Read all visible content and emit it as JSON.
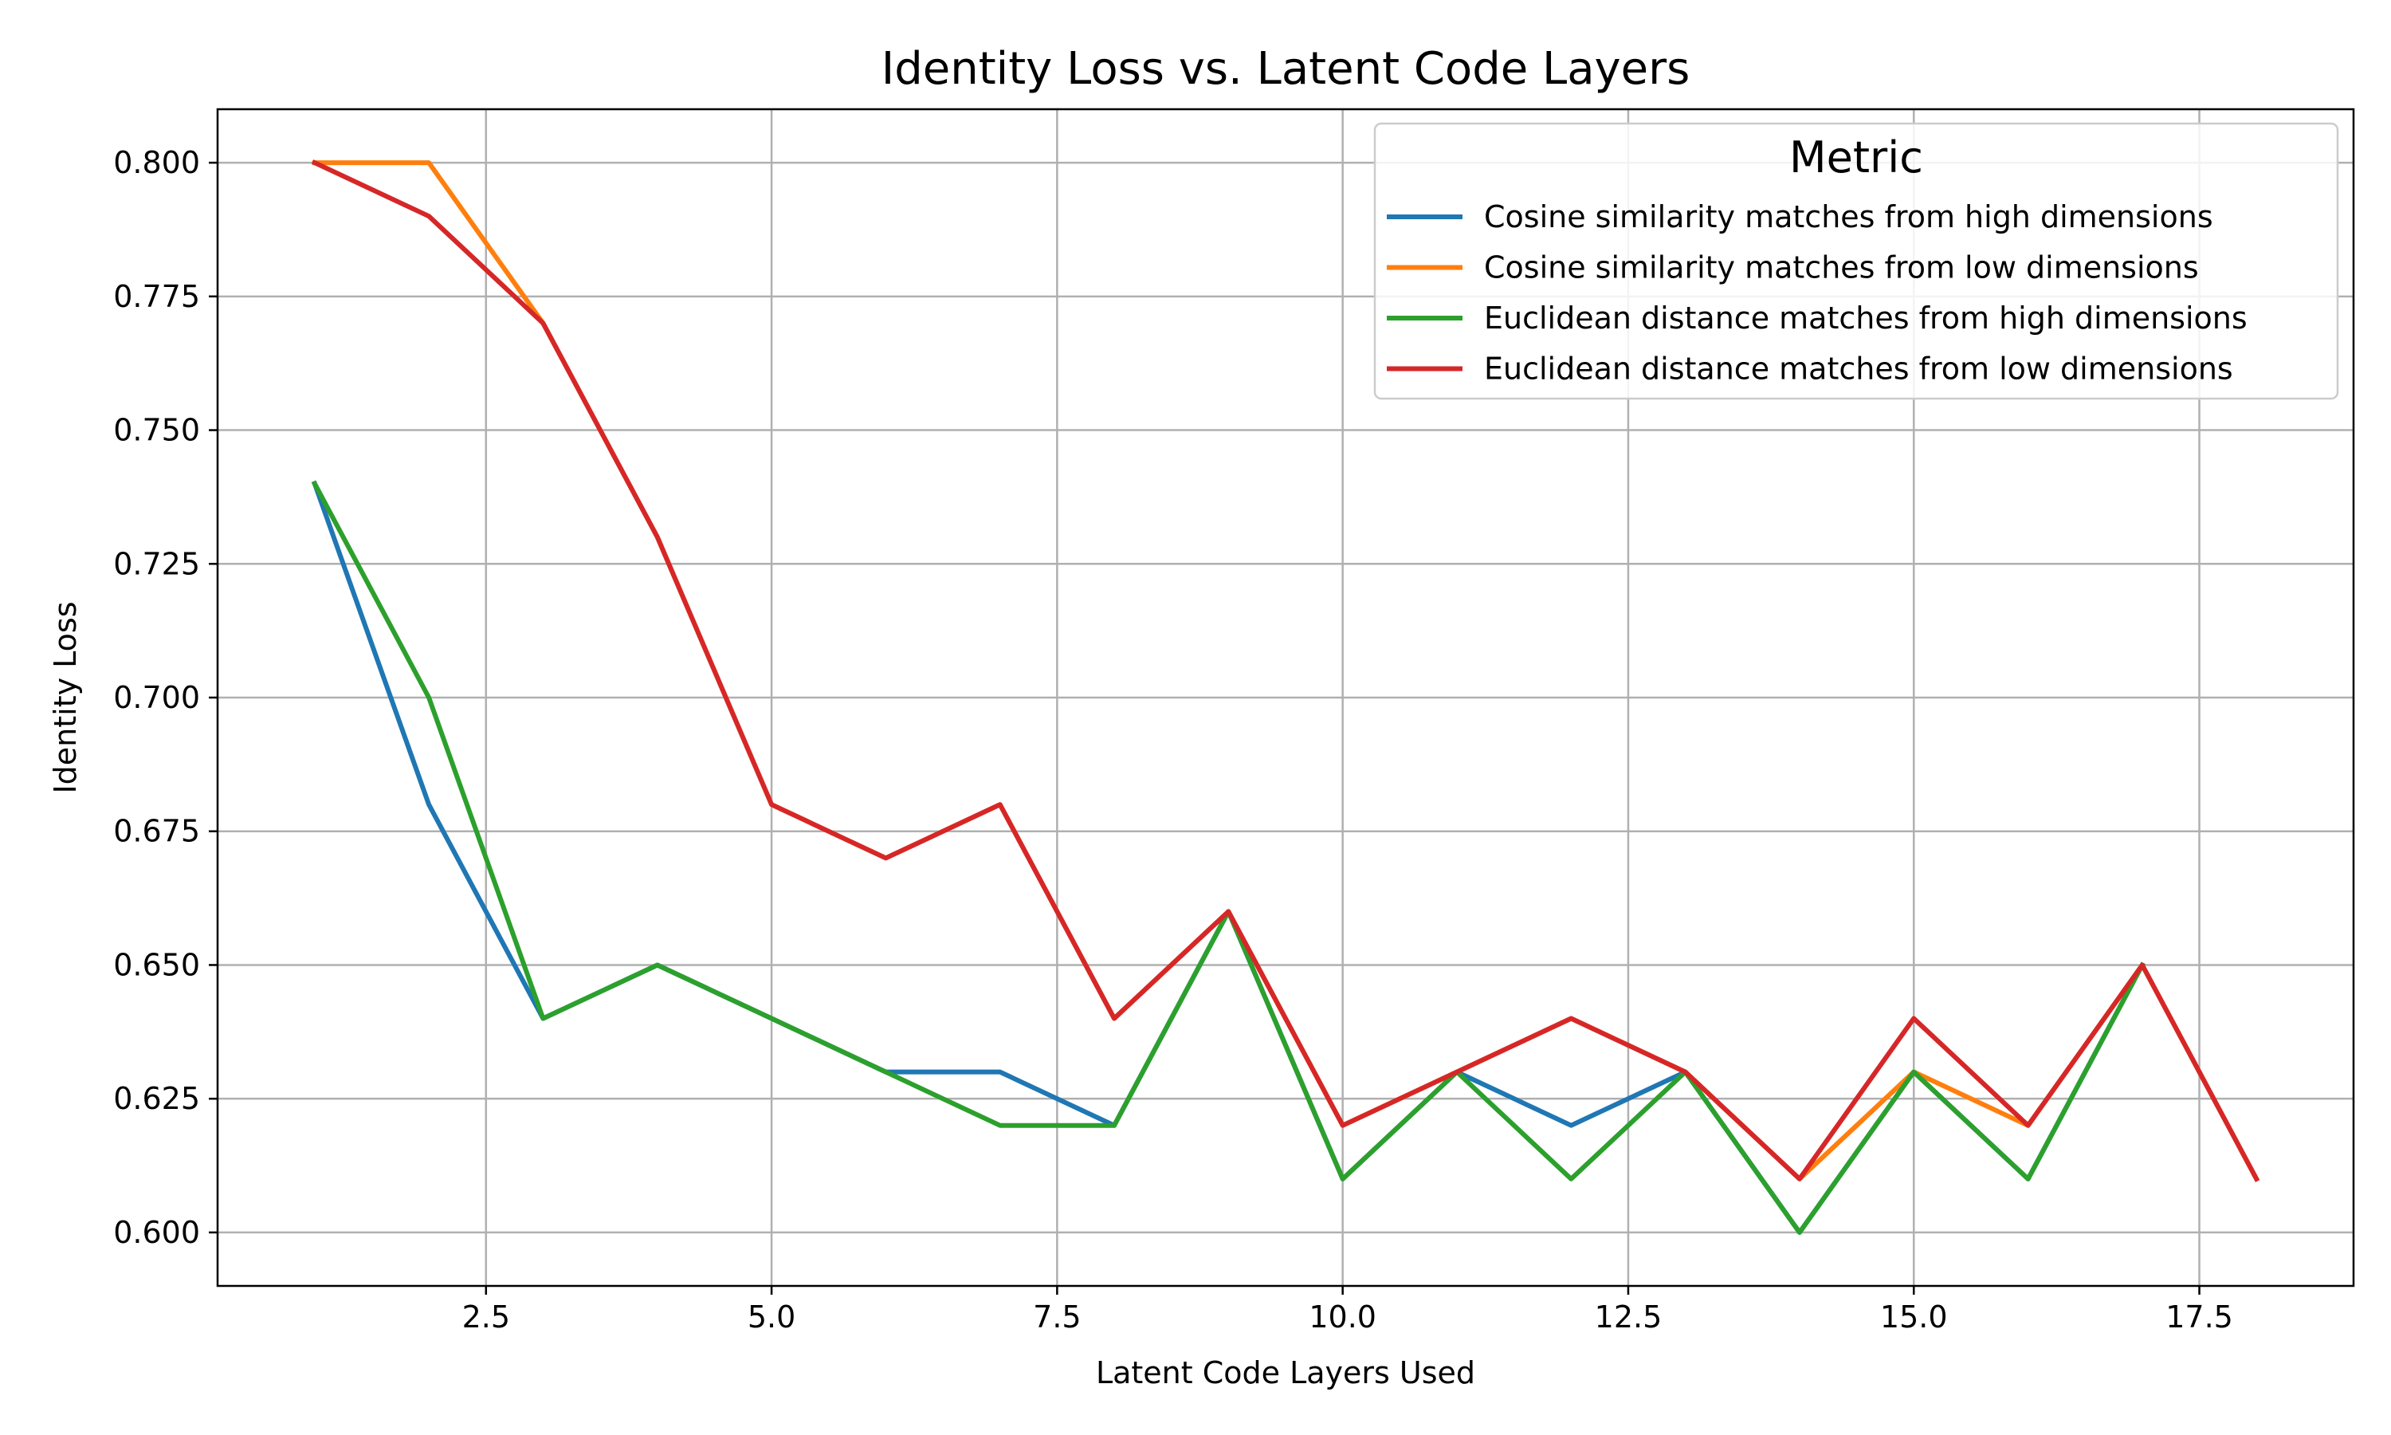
{
  "chart_data": {
    "type": "line",
    "title": "Identity Loss vs. Latent Code Layers",
    "xlabel": "Latent Code Layers Used",
    "ylabel": "Identity Loss",
    "xlim": [
      0.15,
      18.85
    ],
    "ylim": [
      0.59,
      0.81
    ],
    "xticks": [
      2.5,
      5.0,
      7.5,
      10.0,
      12.5,
      15.0,
      17.5
    ],
    "xtick_labels": [
      "2.5",
      "5.0",
      "7.5",
      "10.0",
      "12.5",
      "15.0",
      "17.5"
    ],
    "yticks": [
      0.6,
      0.625,
      0.65,
      0.675,
      0.7,
      0.725,
      0.75,
      0.775,
      0.8
    ],
    "ytick_labels": [
      "0.600",
      "0.625",
      "0.650",
      "0.675",
      "0.700",
      "0.725",
      "0.750",
      "0.775",
      "0.800"
    ],
    "grid": true,
    "legend": {
      "title": "Metric",
      "placement": "upper right"
    },
    "series": [
      {
        "name": "Cosine similarity matches from high dimensions",
        "color": "#1f77b4",
        "x": [
          1,
          2,
          3,
          4,
          5,
          6,
          7,
          8,
          9,
          10,
          11,
          12,
          13,
          14,
          15,
          16,
          17
        ],
        "y": [
          0.74,
          0.68,
          0.64,
          0.65,
          0.64,
          0.63,
          0.63,
          0.62,
          0.66,
          0.61,
          0.63,
          0.62,
          0.63,
          0.6,
          0.63,
          0.61,
          0.65
        ]
      },
      {
        "name": "Cosine similarity matches from low dimensions",
        "color": "#ff7f0e",
        "x": [
          1,
          2,
          3,
          4,
          5,
          6,
          7,
          8,
          9,
          10,
          11,
          12,
          13,
          14,
          15,
          16,
          17,
          18
        ],
        "y": [
          0.8,
          0.8,
          0.77,
          0.73,
          0.68,
          0.67,
          0.68,
          0.64,
          0.66,
          0.62,
          0.63,
          0.64,
          0.63,
          0.61,
          0.63,
          0.62,
          0.65,
          0.61
        ]
      },
      {
        "name": "Euclidean distance matches from high dimensions",
        "color": "#2ca02c",
        "x": [
          1,
          2,
          3,
          4,
          5,
          6,
          7,
          8,
          9,
          10,
          11,
          12,
          13,
          14,
          15,
          16,
          17
        ],
        "y": [
          0.74,
          0.7,
          0.64,
          0.65,
          0.64,
          0.63,
          0.62,
          0.62,
          0.66,
          0.61,
          0.63,
          0.61,
          0.63,
          0.6,
          0.63,
          0.61,
          0.65
        ]
      },
      {
        "name": "Euclidean distance matches from low dimensions",
        "color": "#d62728",
        "x": [
          1,
          2,
          3,
          4,
          5,
          6,
          7,
          8,
          9,
          10,
          11,
          12,
          13,
          14,
          15,
          16,
          17,
          18
        ],
        "y": [
          0.8,
          0.79,
          0.77,
          0.73,
          0.68,
          0.67,
          0.68,
          0.64,
          0.66,
          0.62,
          0.63,
          0.64,
          0.63,
          0.61,
          0.64,
          0.62,
          0.65,
          0.61
        ]
      }
    ]
  }
}
